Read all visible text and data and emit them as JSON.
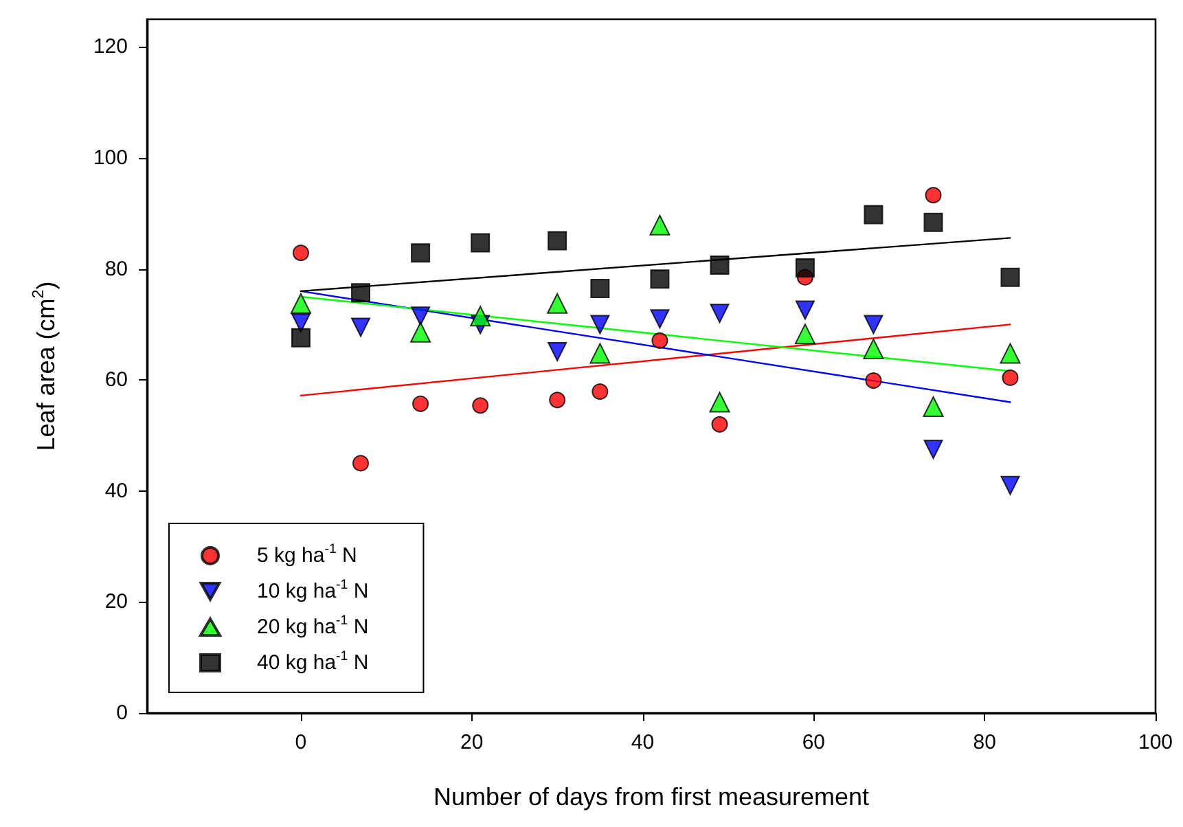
{
  "chart_data": {
    "type": "scatter",
    "xlabel": "Number of days from first measurement",
    "ylabel": "Leaf area (cm$^{2}$)",
    "xlim": [
      -18,
      100
    ],
    "xticks": [
      0,
      20,
      40,
      60,
      80,
      100
    ],
    "ylim": [
      0,
      125
    ],
    "yticks": [
      0,
      20,
      40,
      60,
      80,
      100,
      120
    ],
    "grid": false,
    "legend": "bottom left",
    "series": [
      {
        "name": "5 kg ha$^{-1}$ N",
        "color": "#ff0000",
        "marker": "circle",
        "x": [
          0,
          7,
          14,
          21,
          30,
          35,
          42,
          49,
          59,
          67,
          74,
          83
        ],
        "values": [
          82.9,
          45,
          55.7,
          55.4,
          56.4,
          57.9,
          67.1,
          52,
          78.5,
          59.9,
          93.3,
          60.4
        ]
      },
      {
        "name": "10 kg ha$^{-1}$ N",
        "color": "#0000ff",
        "marker": "triangle-down",
        "x": [
          0,
          7,
          14,
          21,
          30,
          35,
          42,
          49,
          59,
          67,
          74,
          83
        ],
        "values": [
          70.3,
          69.5,
          71.5,
          70,
          65.1,
          70,
          71,
          72,
          72.6,
          70,
          47.5,
          41
        ]
      },
      {
        "name": "20 kg ha$^{-1}$ N",
        "color": "#00ff00",
        "marker": "triangle",
        "x": [
          0,
          14,
          21,
          30,
          35,
          42,
          49,
          59,
          67,
          74,
          83
        ],
        "values": [
          73.8,
          68.6,
          71.5,
          73.8,
          64.8,
          87.9,
          56,
          68.3,
          65.6,
          55.2,
          64.8
        ]
      },
      {
        "name": "40 kg ha$^{-1}$ N",
        "color": "#000000",
        "marker": "square",
        "x": [
          0,
          7,
          14,
          21,
          30,
          35,
          42,
          49,
          59,
          67,
          74,
          83
        ],
        "values": [
          67.6,
          75.7,
          82.9,
          84.7,
          85.1,
          76.5,
          78.2,
          80.7,
          80.2,
          89.8,
          88.4,
          78.5
        ]
      },
      {
        "type": "line",
        "color": "#ff0000",
        "marker": "none",
        "x": [
          0,
          83
        ],
        "values": [
          57.2,
          70
        ]
      },
      {
        "type": "line",
        "color": "#0000ff",
        "marker": "none",
        "x": [
          0,
          83
        ],
        "values": [
          76,
          56
        ]
      },
      {
        "type": "line",
        "color": "#00ff00",
        "marker": "none",
        "x": [
          0,
          83
        ],
        "values": [
          75,
          61.6
        ]
      },
      {
        "type": "line",
        "color": "#000000",
        "marker": "none",
        "x": [
          0,
          83
        ],
        "values": [
          76,
          85.6
        ]
      }
    ]
  }
}
